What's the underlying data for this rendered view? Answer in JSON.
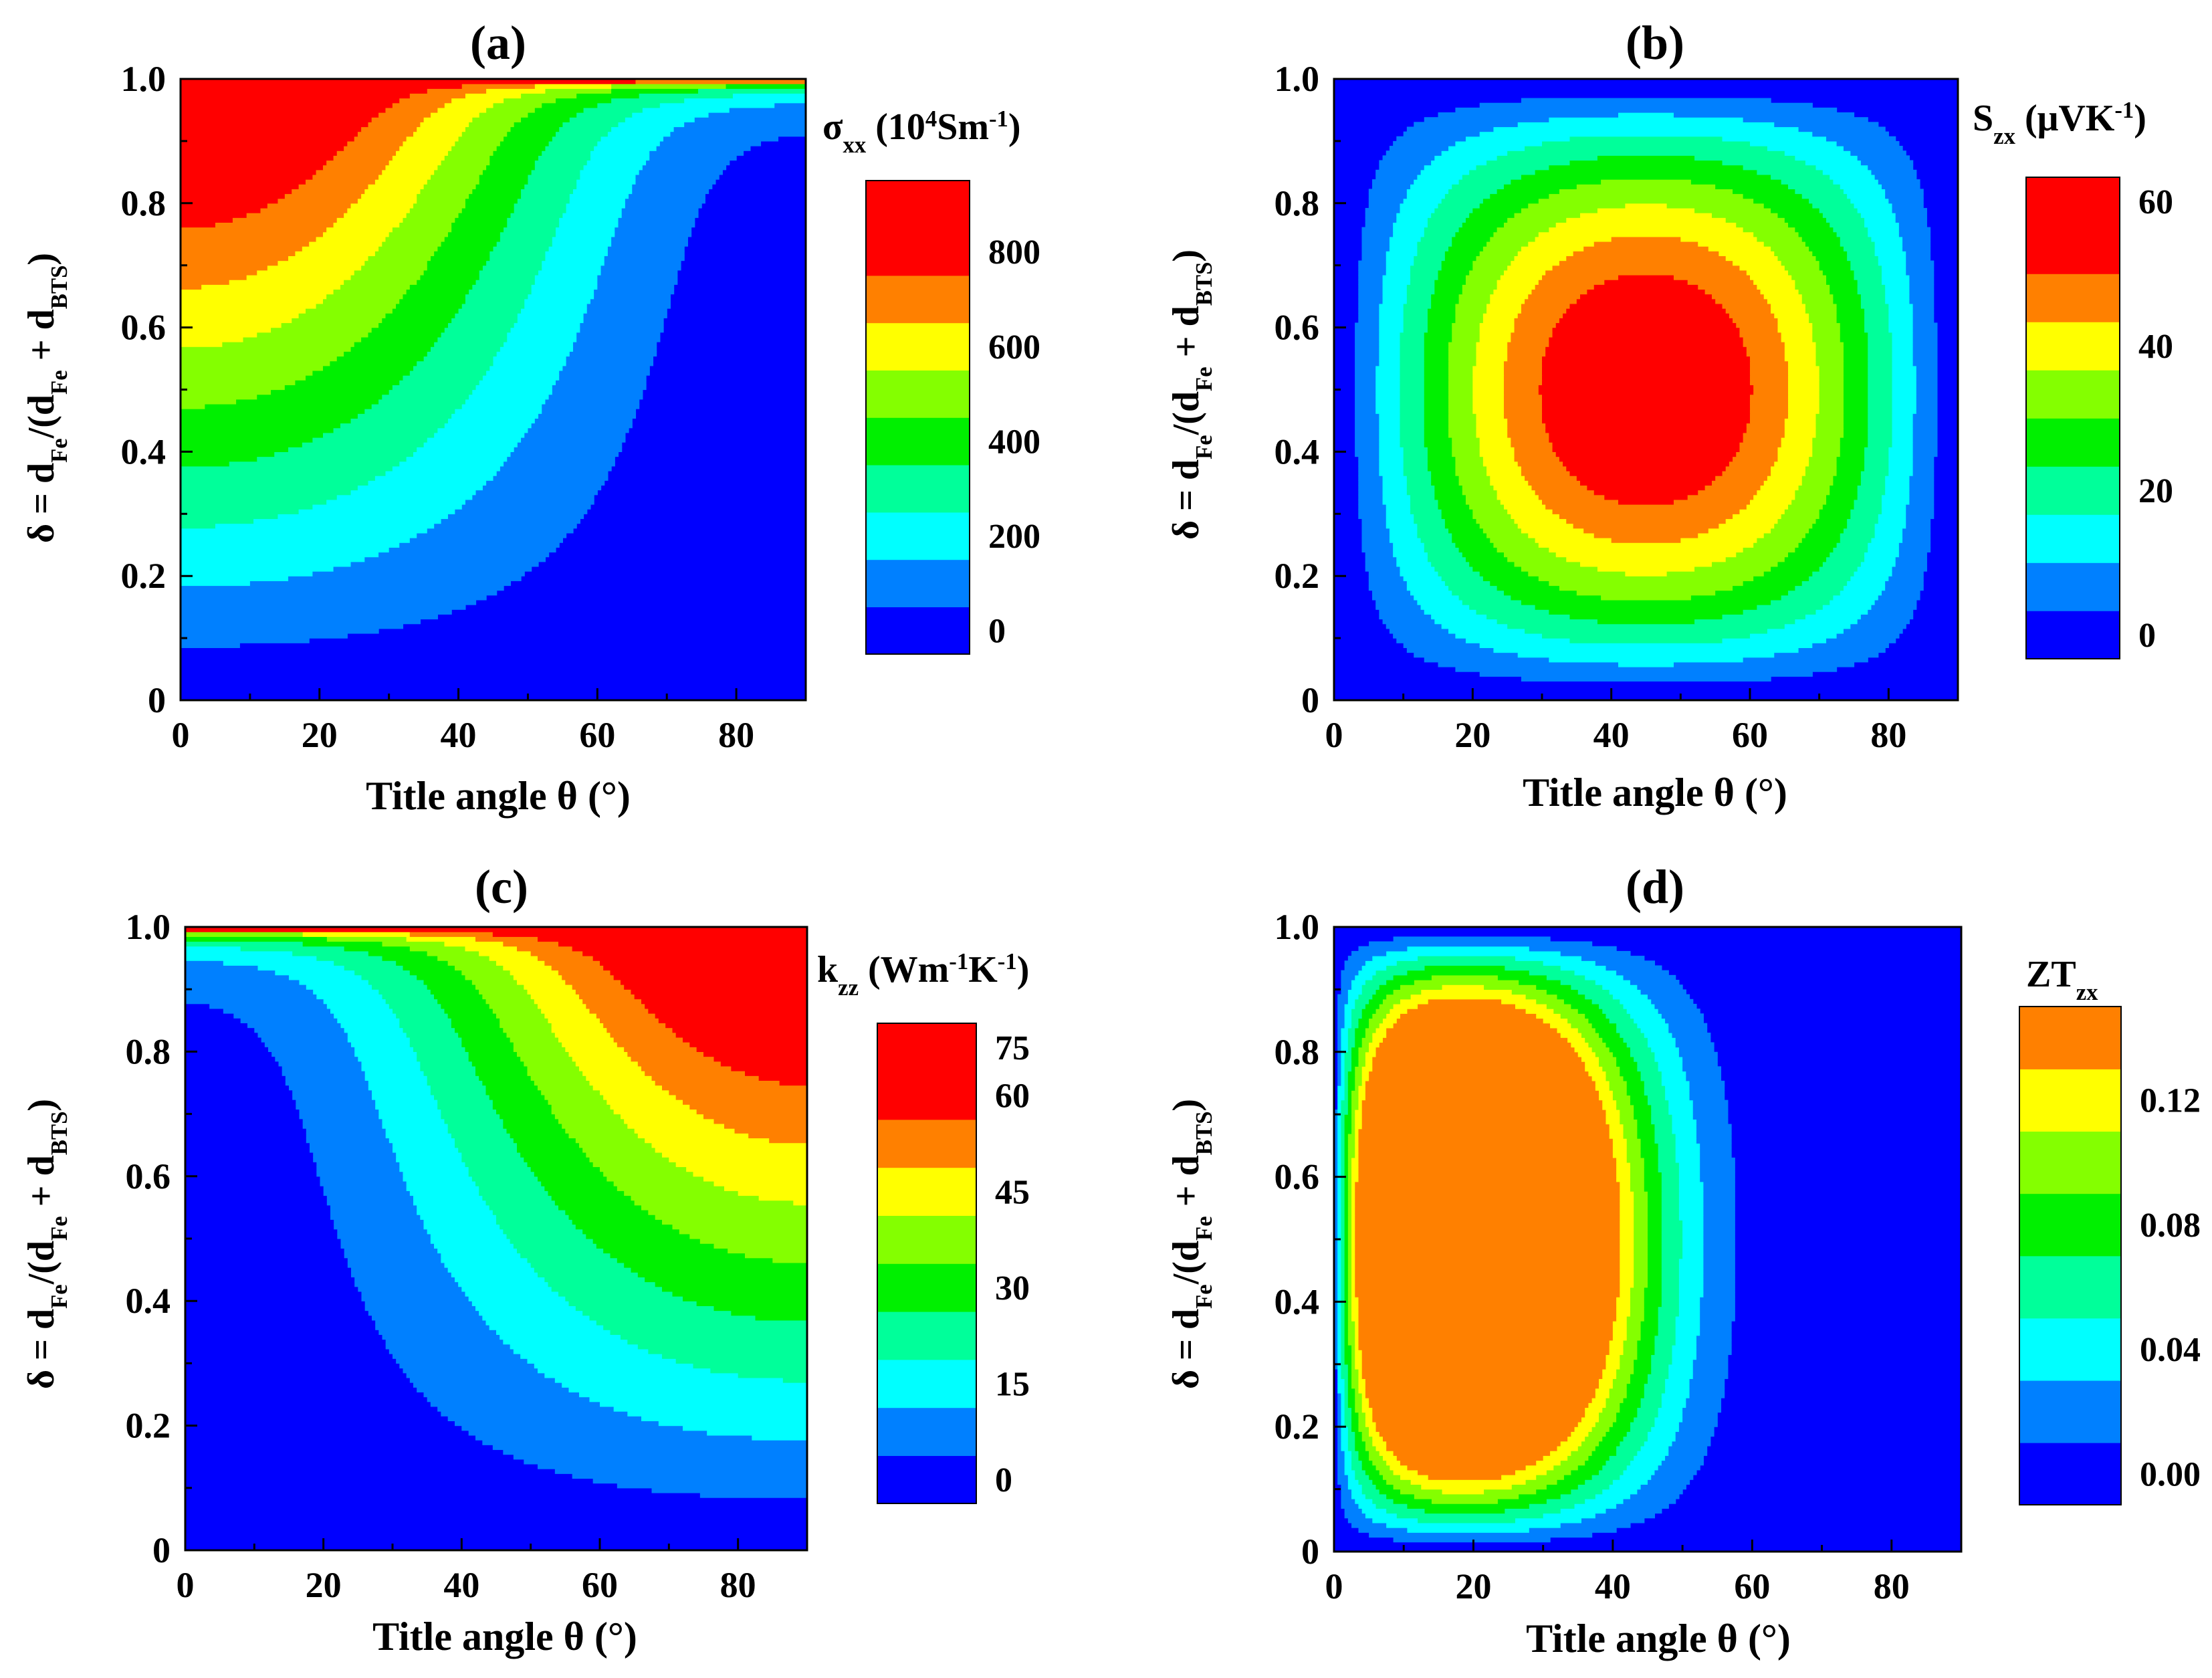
{
  "figure": {
    "type": "contour-panel-figure"
  },
  "chart_data": [
    {
      "id": "a",
      "panel_label": "(a)",
      "type": "contour",
      "title": "",
      "xlabel": "Title angle θ (°)",
      "ylabel_parts": [
        "δ = d",
        "Fe",
        "/(d",
        "Fe",
        " + d",
        "BTS",
        ")"
      ],
      "xlim": [
        0,
        90
      ],
      "ylim": [
        0,
        1
      ],
      "xticks": [
        "0",
        "20",
        "40",
        "60",
        "80"
      ],
      "yticks": [
        "0",
        "0.2",
        "0.4",
        "0.6",
        "0.8",
        "1.0"
      ],
      "colorbar": {
        "title_parts": [
          {
            "t": "σ"
          },
          {
            "t": "xx",
            "sub": true
          },
          {
            "t": " (10"
          },
          {
            "t": "4",
            "sup": true
          },
          {
            "t": "Sm"
          },
          {
            "t": "-1",
            "sup": true
          },
          {
            "t": ")"
          }
        ],
        "levels": [
          0,
          100,
          200,
          300,
          400,
          500,
          600,
          700,
          800,
          900
        ],
        "tick_labels": [
          "0",
          "200",
          "400",
          "600",
          "800"
        ],
        "tick_values": [
          0,
          200,
          400,
          600,
          800
        ]
      },
      "description": "sigma_xx highest near delta = 1 and small theta; decreases toward large theta"
    },
    {
      "id": "b",
      "panel_label": "(b)",
      "type": "contour",
      "title": "",
      "xlabel": "Title angle θ (°)",
      "ylabel_parts": [
        "δ = d",
        "Fe",
        "/(d",
        "Fe",
        " + d",
        "BTS",
        ")"
      ],
      "xlim": [
        0,
        90
      ],
      "ylim": [
        0,
        1
      ],
      "xticks": [
        "0",
        "20",
        "40",
        "60",
        "80"
      ],
      "yticks": [
        "0",
        "0.2",
        "0.4",
        "0.6",
        "0.8",
        "1.0"
      ],
      "colorbar": {
        "title_parts": [
          {
            "t": "S"
          },
          {
            "t": "zx",
            "sub": true
          },
          {
            "t": " (μVK"
          },
          {
            "t": "-1",
            "sup": true
          },
          {
            "t": ")"
          }
        ],
        "levels": [
          0,
          7,
          14,
          21,
          28,
          35,
          42,
          49,
          56,
          63
        ],
        "tick_labels": [
          "0",
          "20",
          "40",
          "60"
        ],
        "tick_values": [
          0,
          20,
          40,
          60
        ]
      },
      "description": "S_zx peaks (~65) at theta = 45 deg, delta = 0.5; zero at theta = 0 and 90"
    },
    {
      "id": "c",
      "panel_label": "(c)",
      "type": "contour",
      "title": "",
      "xlabel": "Title angle θ (°)",
      "ylabel_parts": [
        "δ = d",
        "Fe",
        "/(d",
        "Fe",
        " + d",
        "BTS",
        ")"
      ],
      "xlim": [
        0,
        90
      ],
      "ylim": [
        0,
        1
      ],
      "xticks": [
        "0",
        "20",
        "40",
        "60",
        "80"
      ],
      "yticks": [
        "0",
        "0.2",
        "0.4",
        "0.6",
        "0.8",
        "1.0"
      ],
      "colorbar": {
        "title_parts": [
          {
            "t": "k"
          },
          {
            "t": "zz",
            "sub": true
          },
          {
            "t": " (Wm"
          },
          {
            "t": "-1",
            "sup": true
          },
          {
            "t": "K"
          },
          {
            "t": "-1",
            "sup": true
          },
          {
            "t": ")"
          }
        ],
        "levels": [
          0,
          7.5,
          15,
          22.5,
          30,
          37.5,
          45,
          52.5,
          60,
          67.5
        ],
        "tick_labels": [
          "0",
          "15",
          "30",
          "45",
          "60",
          "75"
        ],
        "tick_values": [
          0,
          15,
          30,
          45,
          60,
          75
        ]
      },
      "description": "k_zz highest near delta = 1 and large theta"
    },
    {
      "id": "d",
      "panel_label": "(d)",
      "type": "contour",
      "title": "",
      "xlabel": "Title angle θ (°)",
      "ylabel_parts": [
        "δ = d",
        "Fe",
        "/(d",
        "Fe",
        " + d",
        "BTS",
        ")"
      ],
      "xlim": [
        0,
        90
      ],
      "ylim": [
        0,
        1
      ],
      "xticks": [
        "0",
        "20",
        "40",
        "60",
        "80"
      ],
      "yticks": [
        "0",
        "0.2",
        "0.4",
        "0.6",
        "0.8",
        "1.0"
      ],
      "colorbar": {
        "title_parts": [
          {
            "t": "ZT"
          },
          {
            "t": "zx",
            "sub": true
          }
        ],
        "levels": [
          0,
          0.02,
          0.04,
          0.06,
          0.08,
          0.1,
          0.12,
          0.14
        ],
        "tick_labels": [
          "0.00",
          "0.04",
          "0.08",
          "0.12"
        ],
        "tick_values": [
          0,
          0.04,
          0.08,
          0.12
        ]
      },
      "description": "ZT_zx peaks (~0.14) near theta = 15 deg, delta = 0.5"
    }
  ],
  "colors": [
    "#0000ff",
    "#0080ff",
    "#00ffff",
    "#00ff9a",
    "#00f000",
    "#84ff00",
    "#ffff00",
    "#ff8000",
    "#ff0000"
  ]
}
